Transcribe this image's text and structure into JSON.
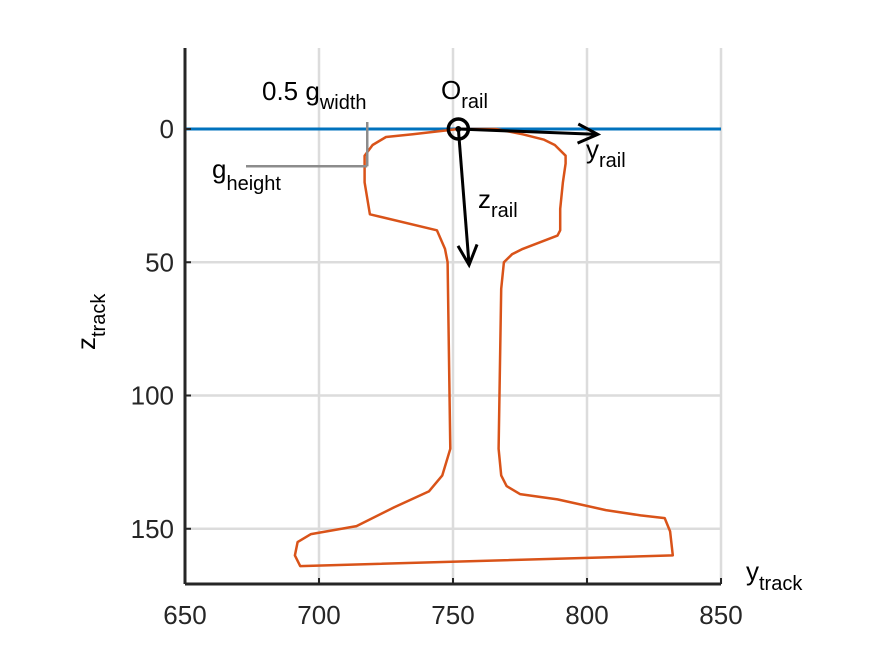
{
  "chart_data": {
    "type": "line",
    "title": "",
    "xlim": [
      650,
      850
    ],
    "ylim": [
      0,
      170
    ],
    "y_reversed": true,
    "grid": true,
    "x_ticks": [
      650,
      700,
      750,
      800,
      850
    ],
    "x_tick_labels": [
      "650",
      "700",
      "750",
      "800",
      "850"
    ],
    "y_ticks": [
      0,
      50,
      100,
      150
    ],
    "y_tick_labels": [
      "0",
      "50",
      "100",
      "150"
    ],
    "xlabel": {
      "base": "y",
      "sub": "track"
    },
    "ylabel": {
      "base": "z",
      "sub": "track"
    },
    "series": [
      {
        "kind": "reference-line",
        "color": "#0072BD",
        "x": [
          650,
          850
        ],
        "y": [
          0,
          0
        ]
      },
      {
        "kind": "rail-profile",
        "color": "#D95319",
        "x": [
          752,
          735,
          725,
          720,
          717,
          717,
          719,
          744,
          747,
          748,
          749,
          746,
          741,
          728,
          714,
          697,
          692,
          691,
          693,
          832,
          831,
          829,
          820,
          807,
          789,
          775,
          770,
          768,
          767,
          768,
          769,
          772,
          776,
          789,
          790,
          790,
          791,
          792,
          792,
          788,
          784,
          776,
          766,
          752
        ],
        "y": [
          0,
          2,
          3,
          6,
          10,
          20,
          32,
          38,
          45,
          50,
          120,
          130,
          136,
          142,
          149,
          152,
          155,
          160,
          164,
          160,
          151,
          146,
          145,
          143,
          139,
          137,
          134,
          130,
          120,
          60,
          50,
          47,
          45,
          40,
          38,
          30,
          20,
          13,
          10,
          6,
          4,
          2,
          0,
          0
        ]
      }
    ],
    "annotations": {
      "origin": {
        "label_base": "O",
        "label_sub": "rail",
        "x": 752,
        "y": 0
      },
      "y_rail_axis": {
        "label_base": "y",
        "label_sub": "rail",
        "from": [
          752,
          0
        ],
        "to": [
          804,
          2
        ]
      },
      "z_rail_axis": {
        "label_base": "z",
        "label_sub": "rail",
        "from": [
          752,
          0
        ],
        "to": [
          756,
          51
        ]
      },
      "half_width": {
        "label": "0.5 g",
        "label_sub": "width",
        "x": 718
      },
      "height": {
        "label_base": "g",
        "label_sub": "height",
        "z": 14
      }
    },
    "colors": {
      "axes": "#262626",
      "grid": "#dcdcdc",
      "dimension_lines": "#8c8c8c",
      "annotation_arrows": "#000000"
    }
  }
}
